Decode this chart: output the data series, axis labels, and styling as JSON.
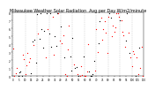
{
  "title": "Milwaukee Weather Solar Radiation  Avg per Day W/m2/minute",
  "title_fontsize": 3.5,
  "background_color": "#ffffff",
  "plot_bg_color": "#ffffff",
  "grid_color": "#b0b0b0",
  "dot_color_main": "#000000",
  "dot_color_highlight": "#ff0000",
  "ylim": [
    0,
    8
  ],
  "num_points": 110,
  "seed": 7,
  "grid_every": 10,
  "dot_size": 0.8
}
